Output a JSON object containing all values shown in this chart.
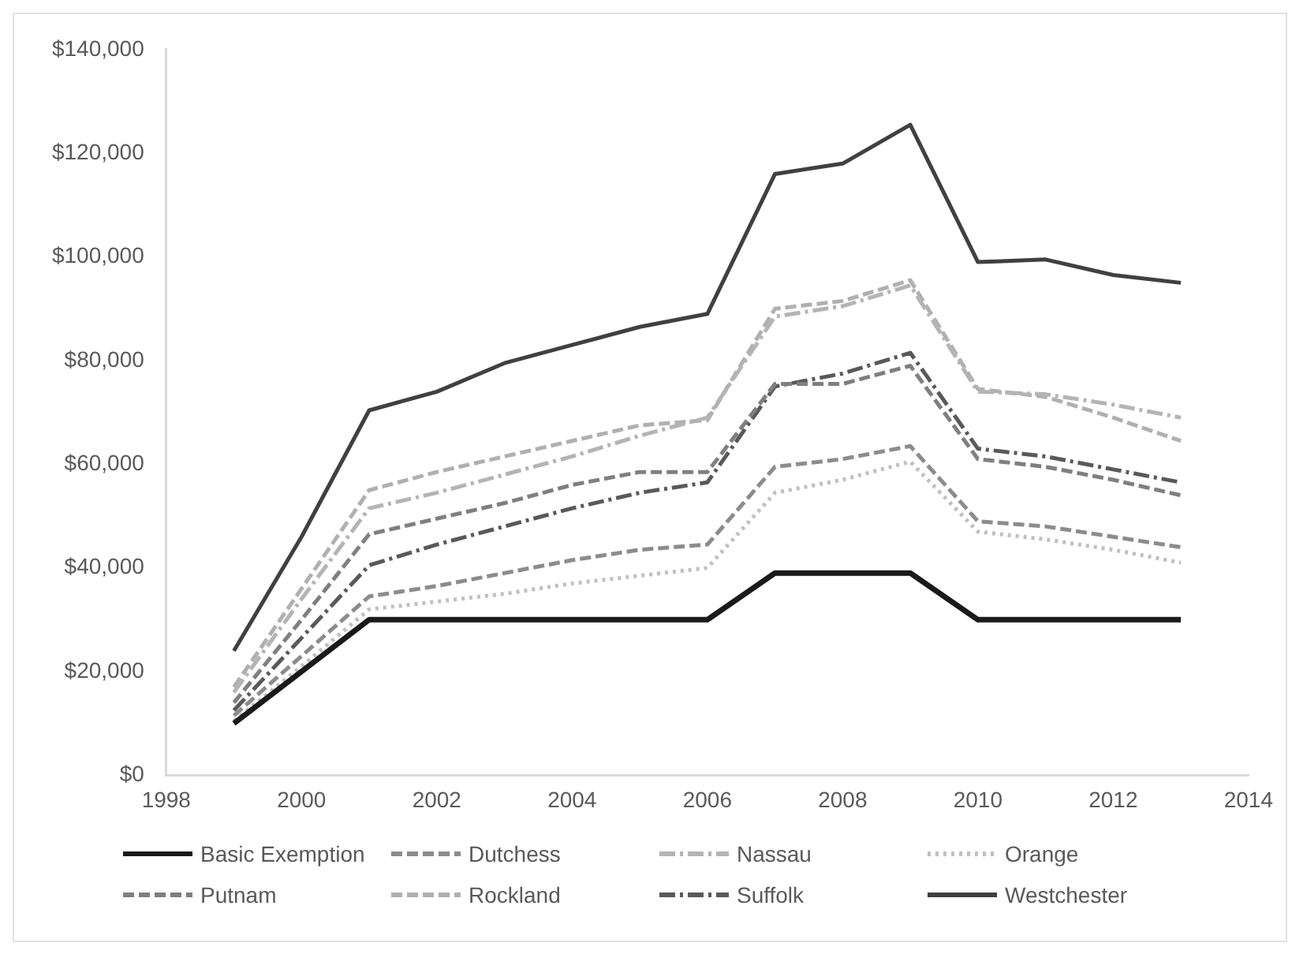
{
  "chart_data": {
    "type": "line",
    "x": [
      1999,
      2000,
      2001,
      2002,
      2003,
      2004,
      2005,
      2006,
      2007,
      2008,
      2009,
      2010,
      2011,
      2012,
      2013
    ],
    "series": [
      {
        "name": "Basic Exemption",
        "color": "#1a1a1a",
        "line_style": "solid",
        "values": [
          10000,
          20000,
          30000,
          30000,
          30000,
          30000,
          30000,
          30000,
          39000,
          39000,
          39000,
          30000,
          30000,
          30000,
          30000
        ]
      },
      {
        "name": "Dutchess",
        "color": "#8c8c8c",
        "line_style": "dashed",
        "values": [
          11500,
          23000,
          34500,
          36500,
          39000,
          41500,
          43500,
          44500,
          59500,
          61000,
          63500,
          49000,
          48000,
          46000,
          44000
        ]
      },
      {
        "name": "Nassau",
        "color": "#b4b4b4",
        "line_style": "dashdot",
        "values": [
          16000,
          34000,
          51500,
          54500,
          58000,
          61500,
          65500,
          69000,
          88500,
          90500,
          94500,
          74000,
          73500,
          71500,
          69000
        ]
      },
      {
        "name": "Orange",
        "color": "#c0c0c0",
        "line_style": "dotted",
        "values": [
          10500,
          21000,
          32000,
          33500,
          35000,
          37000,
          38500,
          40000,
          54500,
          57000,
          60500,
          47000,
          45500,
          43500,
          41000
        ]
      },
      {
        "name": "Putnam",
        "color": "#7f7f7f",
        "line_style": "dashed",
        "values": [
          14000,
          30000,
          46500,
          49500,
          52500,
          56000,
          58500,
          58500,
          75500,
          75500,
          79000,
          61000,
          59500,
          57000,
          54000
        ]
      },
      {
        "name": "Rockland",
        "color": "#b0b0b0",
        "line_style": "dashed",
        "values": [
          17000,
          36000,
          55000,
          58500,
          61500,
          64500,
          67500,
          68500,
          90000,
          91500,
          95500,
          74500,
          73000,
          69000,
          64500
        ]
      },
      {
        "name": "Suffolk",
        "color": "#595959",
        "line_style": "dashdot",
        "values": [
          12500,
          26500,
          40500,
          44500,
          48000,
          51500,
          54500,
          56500,
          75000,
          77500,
          81500,
          63000,
          61500,
          59000,
          56500
        ]
      },
      {
        "name": "Westchester",
        "color": "#404040",
        "line_style": "solid",
        "values": [
          24000,
          46000,
          70400,
          74000,
          79500,
          83000,
          86500,
          89000,
          116000,
          118000,
          125500,
          99000,
          99500,
          96500,
          95000
        ]
      }
    ],
    "xlim": [
      1998,
      2014
    ],
    "xticks": [
      1998,
      2000,
      2002,
      2004,
      2006,
      2008,
      2010,
      2012,
      2014
    ],
    "ylim": [
      0,
      140000
    ],
    "yticks": [
      {
        "value": 0,
        "label": "$0"
      },
      {
        "value": 20000,
        "label": "$20,000"
      },
      {
        "value": 40000,
        "label": "$40,000"
      },
      {
        "value": 60000,
        "label": "$60,000"
      },
      {
        "value": 80000,
        "label": "$80,000"
      },
      {
        "value": 100000,
        "label": "$100,000"
      },
      {
        "value": 120000,
        "label": "$120,000"
      },
      {
        "value": 140000,
        "label": "$140,000"
      }
    ],
    "grid": false,
    "legend": "bottom",
    "marker": "none"
  }
}
